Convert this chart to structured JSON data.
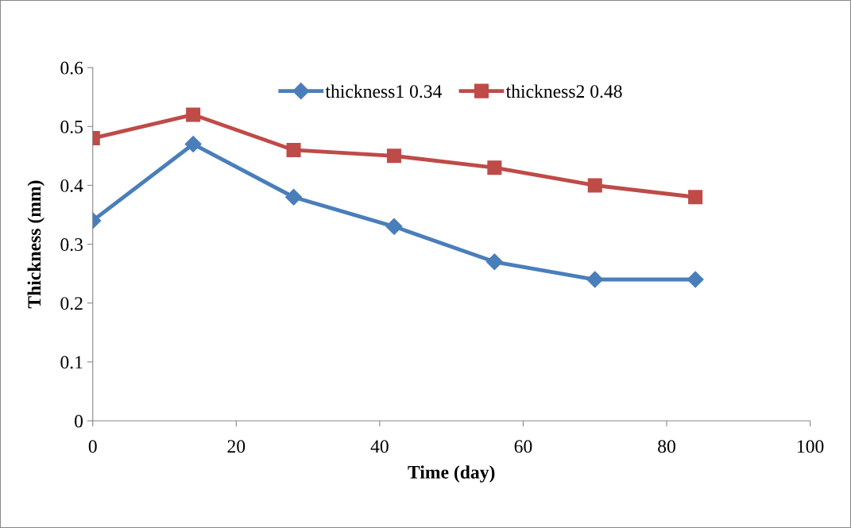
{
  "chart_data": {
    "type": "line",
    "xlabel": "Time (day)",
    "ylabel": "Thickness (mm)",
    "x": [
      0,
      14,
      28,
      42,
      56,
      70,
      84
    ],
    "series": [
      {
        "name": "thickness1 0.34",
        "color": "#4a7ebb",
        "marker": "diamond",
        "values": [
          0.34,
          0.47,
          0.38,
          0.33,
          0.27,
          0.24,
          0.24
        ]
      },
      {
        "name": "thickness2 0.48",
        "color": "#be4b48",
        "marker": "square",
        "values": [
          0.48,
          0.52,
          0.46,
          0.45,
          0.43,
          0.4,
          0.38
        ]
      }
    ],
    "xlim": [
      0,
      100
    ],
    "xticks": [
      0,
      20,
      40,
      60,
      80,
      100
    ],
    "ylim": [
      0,
      0.6
    ],
    "yticks": [
      0,
      0.1,
      0.2,
      0.3,
      0.4,
      0.5,
      0.6
    ],
    "grid": false,
    "legend": "top",
    "line_style": "solid"
  }
}
